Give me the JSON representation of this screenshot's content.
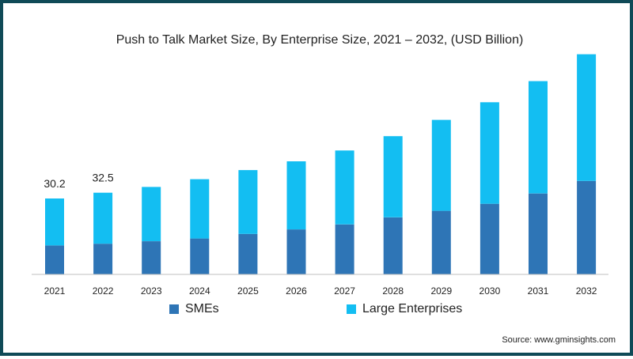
{
  "chart_data": {
    "type": "bar",
    "stacked": true,
    "title": "Push to Talk Market Size, By Enterprise Size, 2021 – 2032, (USD Billion)",
    "categories": [
      "2021",
      "2022",
      "2023",
      "2024",
      "2025",
      "2026",
      "2027",
      "2028",
      "2029",
      "2030",
      "2031",
      "2032"
    ],
    "series": [
      {
        "name": "SMEs",
        "color": "#2e75b6",
        "values": [
          11.5,
          12.2,
          13.2,
          14.3,
          16.1,
          17.9,
          19.9,
          22.7,
          25.3,
          28.1,
          32.2,
          37.2
        ]
      },
      {
        "name": "Large Enterprises",
        "color": "#13bef2",
        "values": [
          18.7,
          20.3,
          21.6,
          23.6,
          25.4,
          27.1,
          29.4,
          32.3,
          36.2,
          40.4,
          44.7,
          50.4
        ]
      }
    ],
    "data_labels": [
      {
        "category": "2021",
        "text": "30.2"
      },
      {
        "category": "2022",
        "text": "32.5"
      }
    ],
    "ylim": [
      0,
      90
    ],
    "grid": false,
    "legend_position": "bottom"
  },
  "source": "Source: www.gminsights.com"
}
